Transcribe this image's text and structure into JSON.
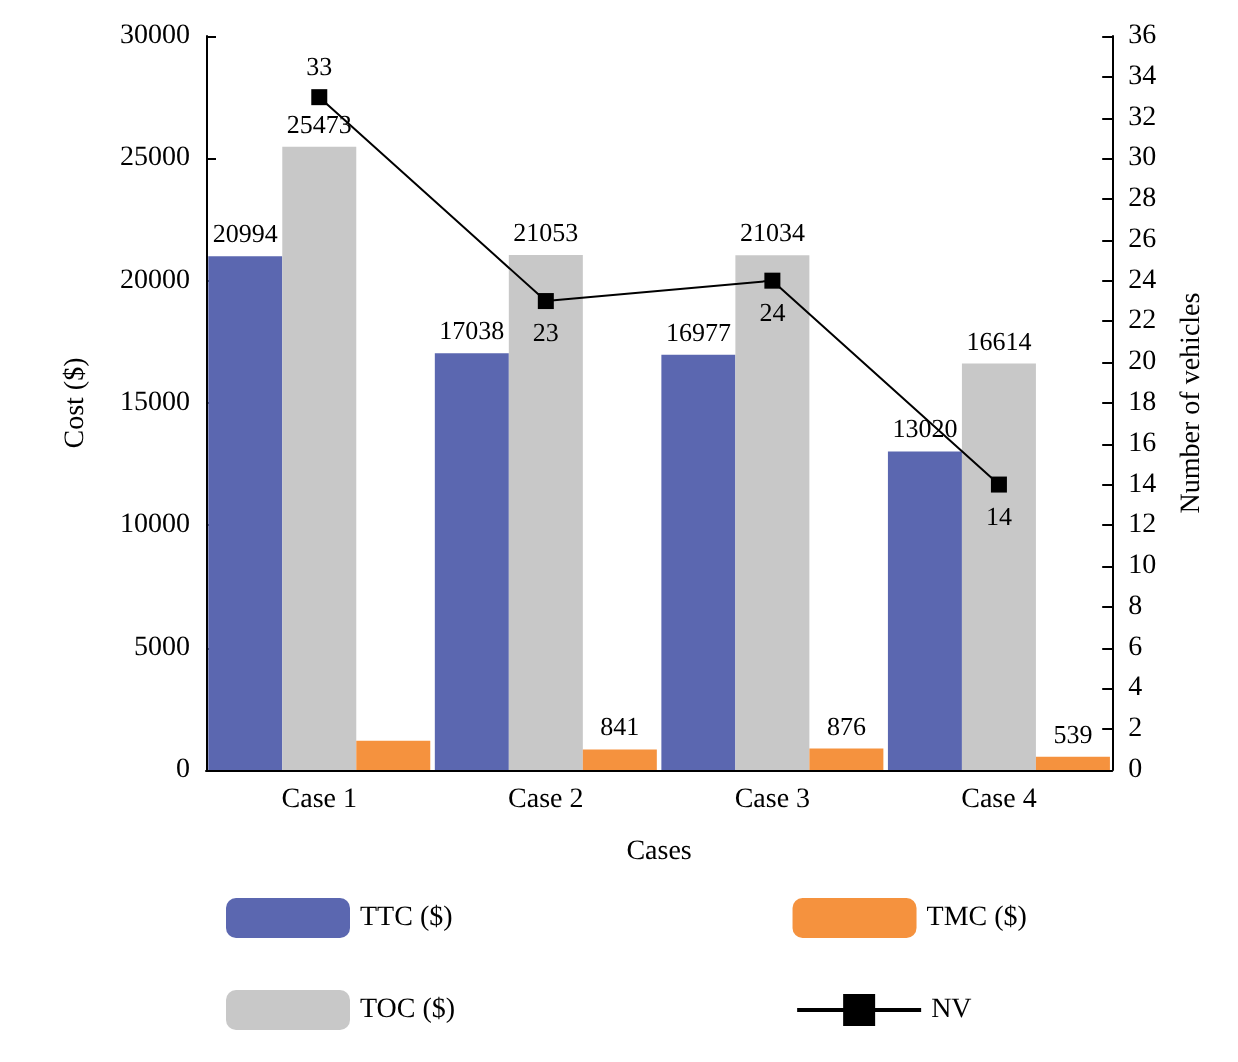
{
  "chart_data": {
    "type": "bar",
    "xlabel": "Cases",
    "ylabel": "Cost ($)",
    "y2label": "Number of vehicles",
    "categories": [
      "Case 1",
      "Case 2",
      "Case 3",
      "Case 4"
    ],
    "series": [
      {
        "name": "TTC ($)",
        "color": "#5b67b0",
        "values": [
          20994,
          17038,
          16977,
          13020
        ],
        "value_labels": [
          "20994",
          "17038",
          "16977",
          "13020"
        ]
      },
      {
        "name": "TOC ($)",
        "color": "#c8c8c8",
        "values": [
          25473,
          21053,
          21034,
          16614
        ],
        "value_labels": [
          "25473",
          "21053",
          "21034",
          "16614"
        ]
      },
      {
        "name": "TMC ($)",
        "color": "#f5923e",
        "values": [
          1200,
          841,
          876,
          539
        ],
        "value_labels": [
          null,
          "841",
          "876",
          "539"
        ]
      },
      {
        "name": "NV",
        "type": "line",
        "axis": "y2",
        "color": "#000000",
        "marker": "square",
        "values": [
          33,
          23,
          24,
          14
        ],
        "value_labels": [
          "33",
          "23",
          "24",
          "14"
        ]
      }
    ],
    "ylim": [
      0,
      30000
    ],
    "yticks": [
      0,
      5000,
      10000,
      15000,
      20000,
      25000,
      30000
    ],
    "y2lim": [
      0,
      36
    ],
    "y2ticks": [
      0,
      2,
      4,
      6,
      8,
      10,
      12,
      14,
      16,
      18,
      20,
      22,
      24,
      26,
      28,
      30,
      32,
      34,
      36
    ],
    "legend": "bottom",
    "grid": false
  }
}
